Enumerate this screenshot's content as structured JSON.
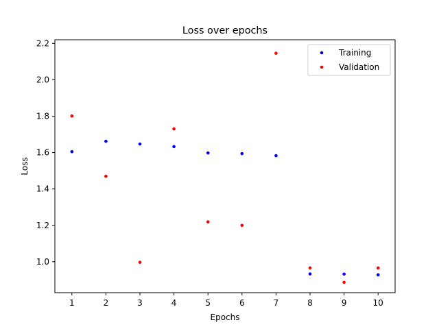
{
  "chart_data": {
    "type": "scatter",
    "title": "Loss over epochs",
    "xlabel": "Epochs",
    "ylabel": "Loss",
    "x": [
      1,
      2,
      3,
      4,
      5,
      6,
      7,
      8,
      9,
      10
    ],
    "xlim": [
      0.5,
      10.5
    ],
    "ylim": [
      0.83,
      2.22
    ],
    "xticks": [
      1,
      2,
      3,
      4,
      5,
      6,
      7,
      8,
      9,
      10
    ],
    "xtick_labels": [
      "1",
      "2",
      "3",
      "4",
      "5",
      "6",
      "7",
      "8",
      "9",
      "10"
    ],
    "yticks": [
      1.0,
      1.2,
      1.4,
      1.6,
      1.8,
      2.0,
      2.2
    ],
    "ytick_labels": [
      "1.0",
      "1.2",
      "1.4",
      "1.6",
      "1.8",
      "2.0",
      "2.2"
    ],
    "grid": false,
    "legend_position": "top-right",
    "series": [
      {
        "name": "Training",
        "color": "#0000ff",
        "values": [
          1.605,
          1.662,
          1.647,
          1.633,
          1.598,
          1.594,
          1.583,
          0.933,
          0.932,
          0.928
        ]
      },
      {
        "name": "Validation",
        "color": "#ff0000",
        "values": [
          1.801,
          1.47,
          0.997,
          1.73,
          1.219,
          1.2,
          2.146,
          0.966,
          0.887,
          0.966
        ]
      }
    ]
  }
}
